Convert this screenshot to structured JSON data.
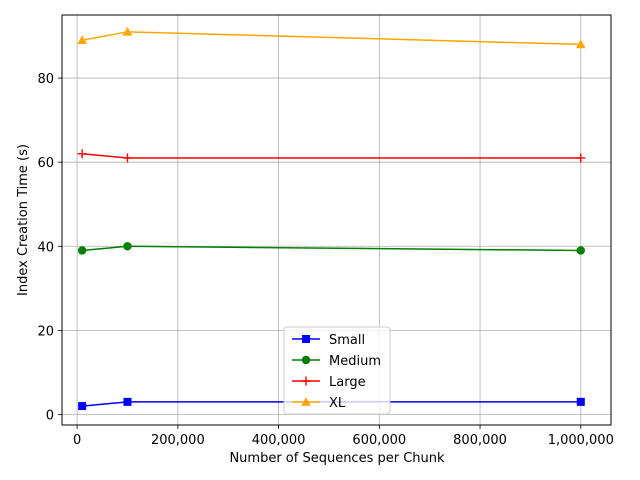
{
  "chart_data": {
    "type": "line",
    "xlabel": "Number of Sequences per Chunk",
    "ylabel": "Index Creation Time (s)",
    "xlim": [
      -30000,
      1060000
    ],
    "ylim": [
      -2.5,
      95
    ],
    "xticks": [
      0,
      200000,
      400000,
      600000,
      800000,
      1000000
    ],
    "xtick_labels": [
      "0",
      "200,000",
      "400,000",
      "600,000",
      "800,000",
      "1,000,000"
    ],
    "yticks": [
      0,
      20,
      40,
      60,
      80
    ],
    "ytick_labels": [
      "0",
      "20",
      "40",
      "60",
      "80"
    ],
    "grid": true,
    "legend_position": "lower-center",
    "x": [
      10000,
      100000,
      1000000
    ],
    "series": [
      {
        "name": "Small",
        "values": [
          2,
          3,
          3
        ],
        "color": "#0000ff",
        "marker": "square"
      },
      {
        "name": "Medium",
        "values": [
          39,
          40,
          39
        ],
        "color": "#008000",
        "marker": "circle"
      },
      {
        "name": "Large",
        "values": [
          62,
          61,
          61
        ],
        "color": "#ff0000",
        "marker": "plus"
      },
      {
        "name": "XL",
        "values": [
          89,
          91,
          88
        ],
        "color": "#ffa500",
        "marker": "triangle"
      }
    ]
  }
}
